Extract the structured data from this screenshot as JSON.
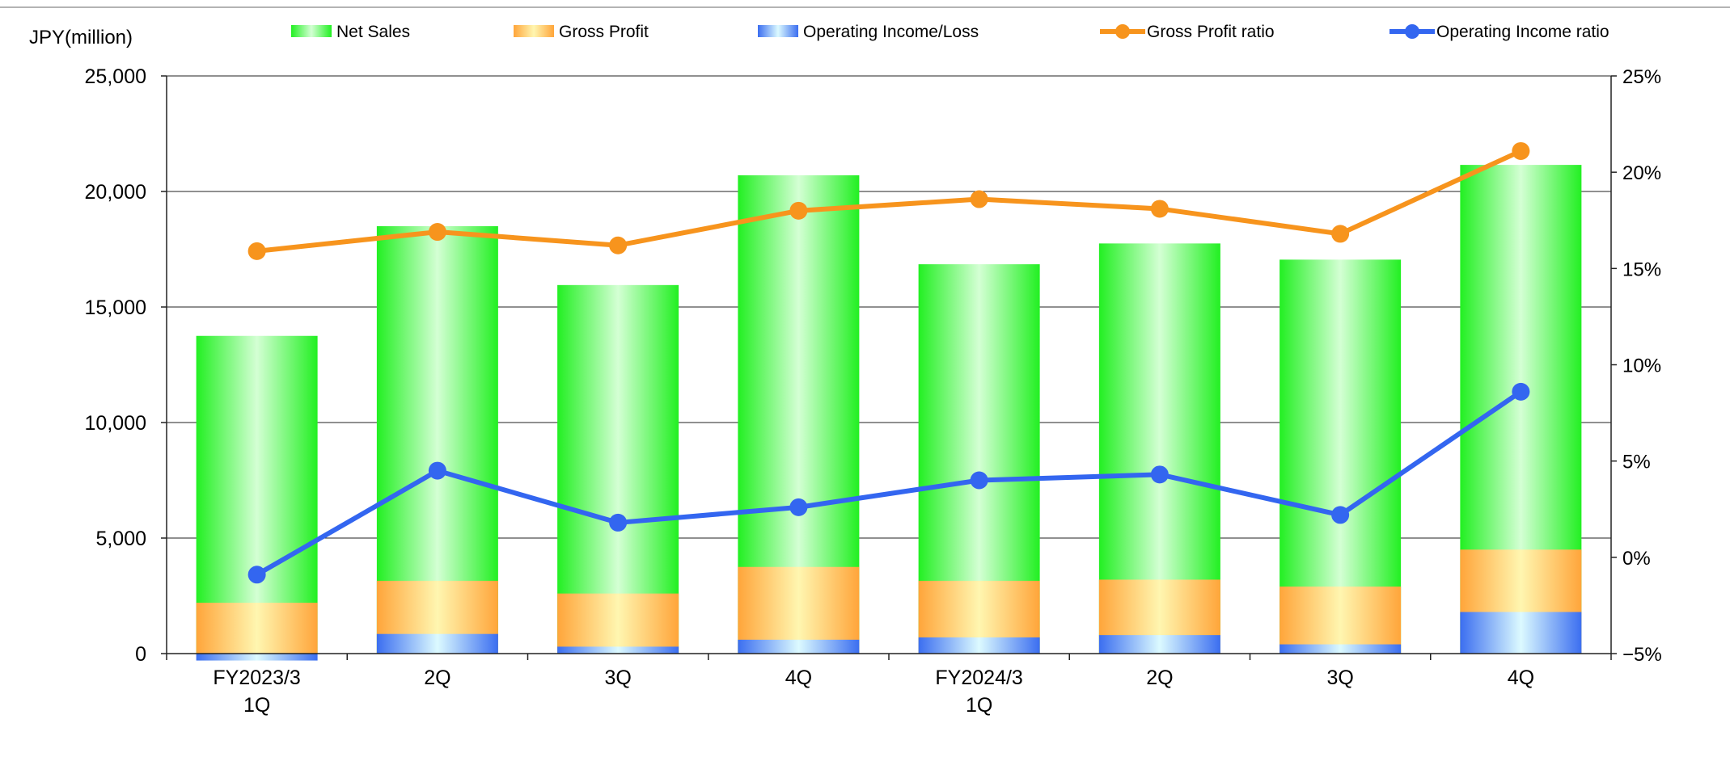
{
  "chart_data": {
    "type": "bar",
    "subtype": "overlapping bars with secondary-axis lines",
    "unit_label": "JPY(million)",
    "categories": [
      [
        "FY2023/3",
        "1Q"
      ],
      [
        "2Q"
      ],
      [
        "3Q"
      ],
      [
        "4Q"
      ],
      [
        "FY2024/3",
        "1Q"
      ],
      [
        "2Q"
      ],
      [
        "3Q"
      ],
      [
        "4Q"
      ]
    ],
    "y_left": {
      "min": 0,
      "max": 25000,
      "step": 5000,
      "tick_labels": [
        "0",
        "5,000",
        "10,000",
        "15,000",
        "20,000",
        "25,000"
      ]
    },
    "y_right": {
      "min": -5,
      "max": 25,
      "step": 5,
      "tick_labels": [
        "−5%",
        "0%",
        "5%",
        "10%",
        "15%",
        "20%",
        "25%"
      ]
    },
    "grid": true,
    "legend_position": "top",
    "bar_series": [
      {
        "name": "Net Sales",
        "values": [
          13750,
          18500,
          15950,
          20700,
          16850,
          17750,
          17050,
          21150
        ],
        "colors": {
          "edge": "#22f022",
          "center": "#d4ffd4"
        }
      },
      {
        "name": "Gross Profit",
        "values": [
          2200,
          3150,
          2600,
          3750,
          3150,
          3200,
          2900,
          4500
        ],
        "colors": {
          "edge": "#ffa53a",
          "center": "#fff6b0"
        }
      },
      {
        "name": "Operating Income/Loss",
        "values": [
          -300,
          850,
          300,
          600,
          700,
          800,
          400,
          1800
        ],
        "colors": {
          "edge": "#3b6ef0",
          "center": "#dcfaff"
        }
      }
    ],
    "line_series": [
      {
        "name": "Gross Profit ratio",
        "axis": "right",
        "color": "#f7941d",
        "values": [
          15.9,
          16.9,
          16.2,
          18.0,
          18.6,
          18.1,
          16.8,
          21.1
        ]
      },
      {
        "name": "Operating Income ratio",
        "axis": "right",
        "color": "#3366f0",
        "values": [
          -0.9,
          4.5,
          1.8,
          2.6,
          4.0,
          4.3,
          2.2,
          8.6
        ]
      }
    ]
  }
}
